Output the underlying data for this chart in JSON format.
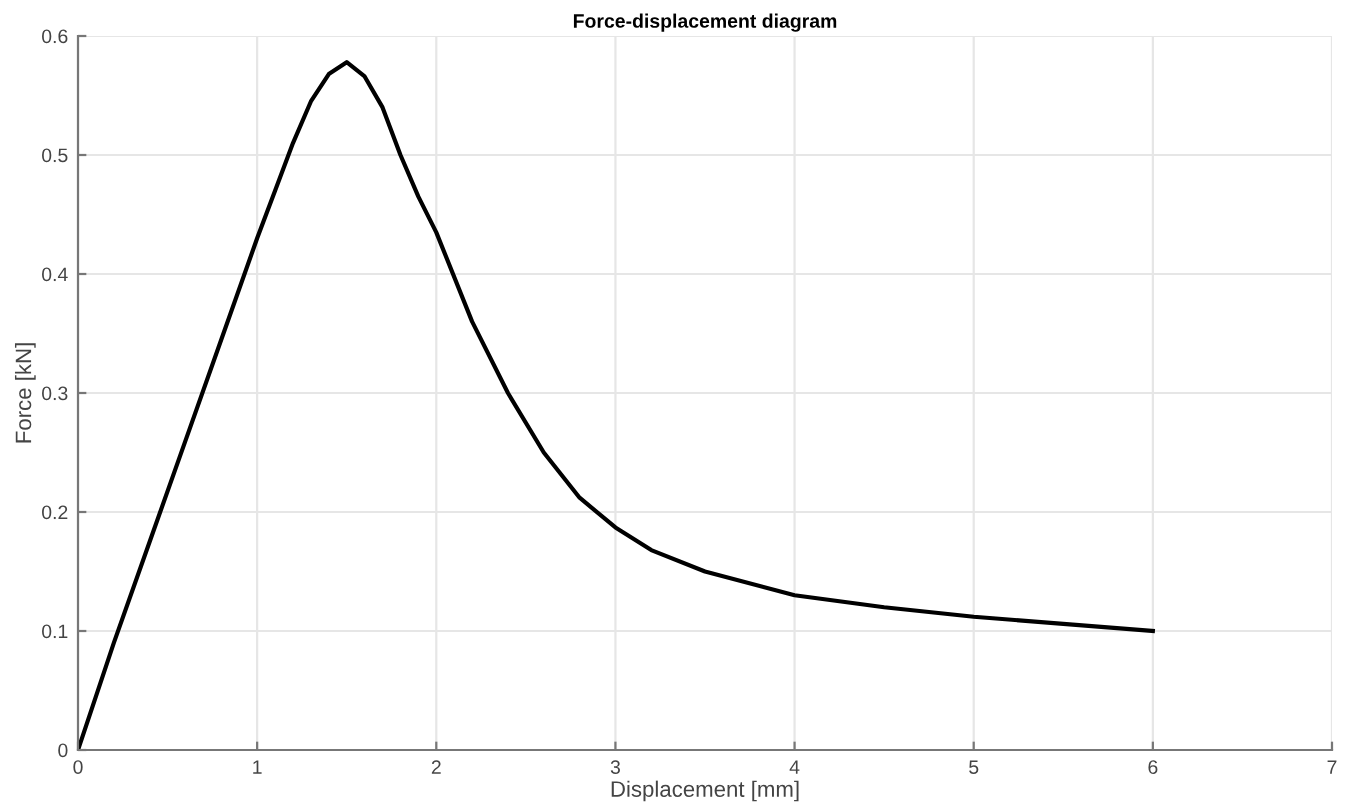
{
  "chart_data": {
    "type": "line",
    "title": "Force-displacement diagram",
    "xlabel": "Displacement [mm]",
    "ylabel": "Force [kN]",
    "x": [
      0,
      0.2,
      0.4,
      0.6,
      0.8,
      1.0,
      1.1,
      1.2,
      1.3,
      1.4,
      1.5,
      1.6,
      1.7,
      1.8,
      1.9,
      2.0,
      2.2,
      2.4,
      2.6,
      2.8,
      3.0,
      3.2,
      3.5,
      4.0,
      4.5,
      5.0,
      5.5,
      6.0
    ],
    "series": [
      {
        "color": "#000000",
        "values": [
          0,
          0.09,
          0.175,
          0.26,
          0.345,
          0.43,
          0.47,
          0.51,
          0.545,
          0.568,
          0.578,
          0.566,
          0.54,
          0.5,
          0.465,
          0.435,
          0.36,
          0.3,
          0.25,
          0.212,
          0.187,
          0.168,
          0.15,
          0.13,
          0.12,
          0.112,
          0.106,
          0.1
        ]
      }
    ],
    "xlim": [
      0,
      7
    ],
    "ylim": [
      0,
      0.6
    ],
    "xticks": [
      0,
      1,
      2,
      3,
      4,
      5,
      6,
      7
    ],
    "yticks": [
      0,
      0.1,
      0.2,
      0.3,
      0.4,
      0.5,
      0.6
    ],
    "grid": true,
    "legend": false,
    "marker": "none",
    "line_style": "solid"
  }
}
